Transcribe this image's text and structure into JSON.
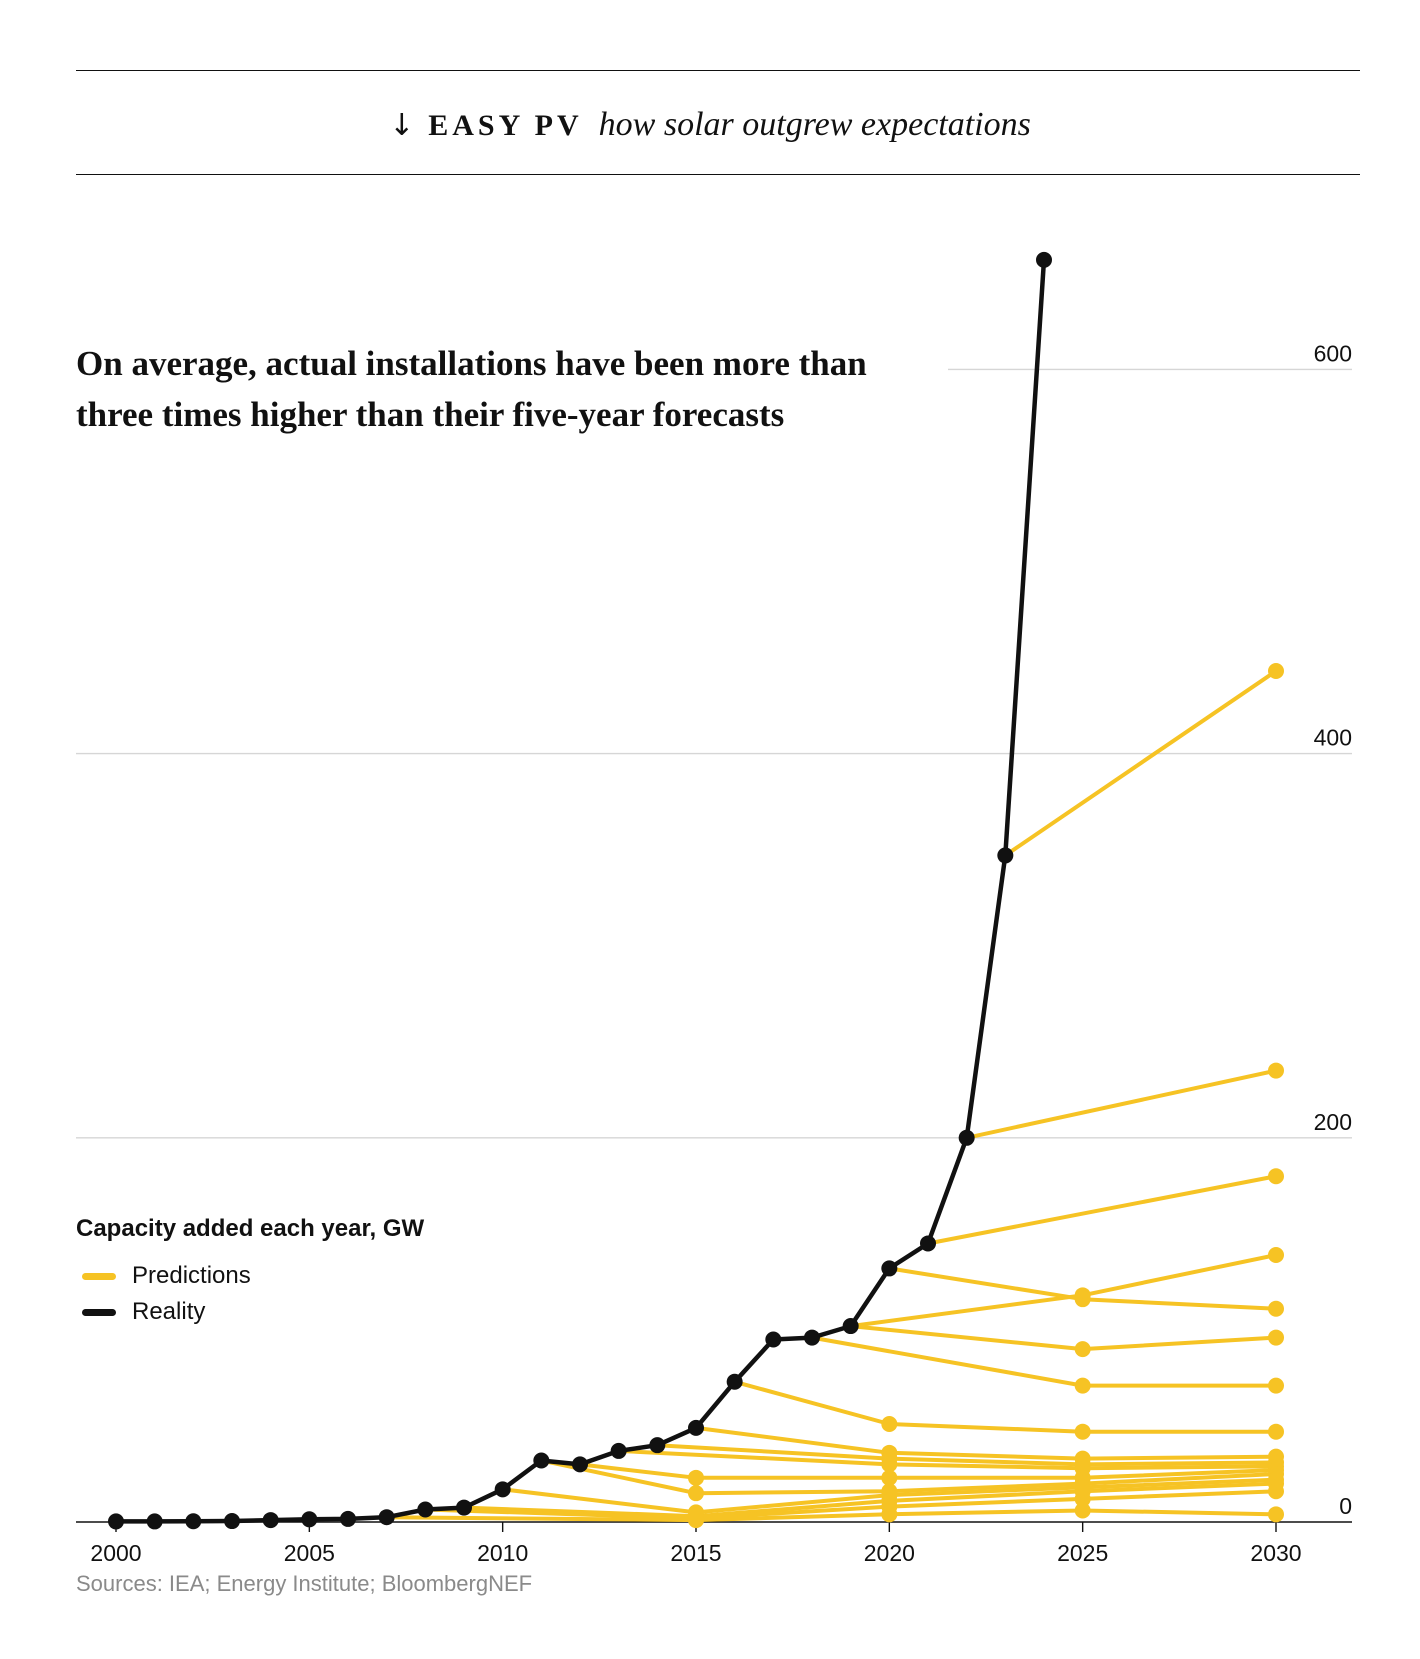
{
  "header": {
    "arrow": "↓",
    "kicker": "EASY PV",
    "subtitle": "how solar outgrew expectations"
  },
  "headline": "On average, actual installations have been more than three times higher than their five-year forecasts",
  "legend": {
    "title": "Capacity added each year, GW",
    "items": [
      {
        "label": "Predictions",
        "color": "#f6c324"
      },
      {
        "label": "Reality",
        "color": "#111111"
      }
    ]
  },
  "source": "Sources: IEA; Energy Institute; BloombergNEF",
  "chart_data": {
    "type": "line",
    "title": "Capacity added each year, GW",
    "xlim": [
      2000,
      2030
    ],
    "ylim": [
      0,
      650
    ],
    "x_ticks": [
      2000,
      2005,
      2010,
      2015,
      2020,
      2025,
      2030
    ],
    "y_ticks": [
      0,
      200,
      400,
      600
    ],
    "grid": true,
    "legend_position": "left",
    "series": [
      {
        "name": "Reality",
        "color": "#111111",
        "x": [
          2000,
          2001,
          2002,
          2003,
          2004,
          2005,
          2006,
          2007,
          2008,
          2009,
          2010,
          2011,
          2012,
          2013,
          2014,
          2015,
          2016,
          2017,
          2018,
          2019,
          2020,
          2021,
          2022,
          2023,
          2024
        ],
        "y": [
          0.3,
          0.3,
          0.4,
          0.5,
          1.0,
          1.4,
          1.6,
          2.5,
          6.5,
          7.5,
          17,
          32,
          30,
          37,
          40,
          49,
          73,
          95,
          96,
          102,
          132,
          145,
          200,
          347,
          657
        ]
      }
    ],
    "predictions": [
      {
        "x": [
          2023,
          2030
        ],
        "y": [
          347,
          443
        ]
      },
      {
        "x": [
          2022,
          2030
        ],
        "y": [
          200,
          235
        ]
      },
      {
        "x": [
          2021,
          2030
        ],
        "y": [
          145,
          180
        ]
      },
      {
        "x": [
          2020,
          2025,
          2030
        ],
        "y": [
          132,
          116,
          111
        ]
      },
      {
        "x": [
          2019,
          2025,
          2030
        ],
        "y": [
          102,
          118,
          139
        ]
      },
      {
        "x": [
          2019,
          2025,
          2030
        ],
        "y": [
          102,
          90,
          96
        ]
      },
      {
        "x": [
          2018,
          2025,
          2030
        ],
        "y": [
          96,
          71,
          71
        ]
      },
      {
        "x": [
          2016,
          2020,
          2025,
          2030
        ],
        "y": [
          73,
          51,
          47,
          47
        ]
      },
      {
        "x": [
          2015,
          2020,
          2025,
          2030
        ],
        "y": [
          49,
          36,
          33,
          34
        ]
      },
      {
        "x": [
          2014,
          2020,
          2025,
          2030
        ],
        "y": [
          40,
          33,
          30,
          31
        ]
      },
      {
        "x": [
          2013,
          2020,
          2025,
          2030
        ],
        "y": [
          37,
          30,
          28,
          29
        ]
      },
      {
        "x": [
          2012,
          2015,
          2020,
          2025,
          2030
        ],
        "y": [
          30,
          23,
          23,
          23,
          27
        ]
      },
      {
        "x": [
          2011,
          2015,
          2020,
          2025,
          2030
        ],
        "y": [
          32,
          15,
          16,
          20,
          25
        ]
      },
      {
        "x": [
          2010,
          2015,
          2020,
          2025,
          2030
        ],
        "y": [
          17,
          5,
          14,
          18,
          22
        ]
      },
      {
        "x": [
          2009,
          2015,
          2020,
          2025,
          2030
        ],
        "y": [
          7.5,
          3,
          11,
          16,
          20
        ]
      },
      {
        "x": [
          2008,
          2015,
          2020,
          2025,
          2030
        ],
        "y": [
          6.5,
          2,
          8,
          12,
          16
        ]
      },
      {
        "x": [
          2007,
          2015,
          2020,
          2025,
          2030
        ],
        "y": [
          2.5,
          1,
          4,
          6,
          4
        ]
      }
    ]
  }
}
